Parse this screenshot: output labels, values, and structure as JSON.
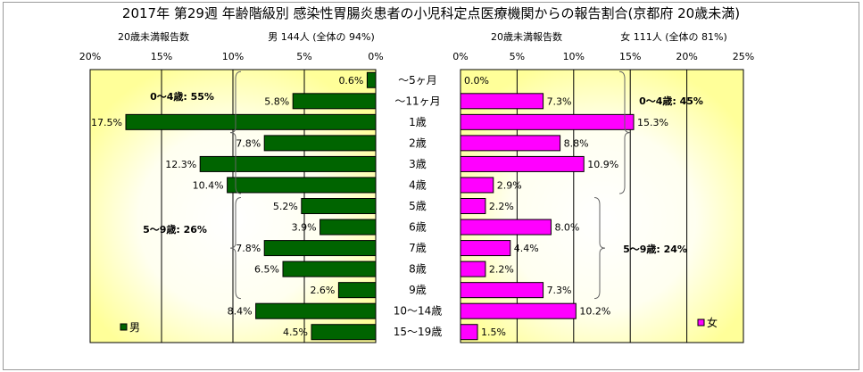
{
  "title": "2017年 第29週 年齢階級別 感染性胃腸炎患者の小児科定点医療機関からの報告割合(京都府 20歳未満)",
  "chart_data": [
    {
      "type": "bar",
      "orientation": "horizontal",
      "x_direction": "reversed",
      "subtitle_left": "20歳未満報告数",
      "subtitle_right": "男 144人 (全体の 94%)",
      "categories": [
        "～5ヶ月",
        "～11ヶ月",
        "1歳",
        "2歳",
        "3歳",
        "4歳",
        "5歳",
        "6歳",
        "7歳",
        "8歳",
        "9歳",
        "10～14歳",
        "15～19歳"
      ],
      "series": [
        {
          "name": "男",
          "color": "#006400",
          "values": [
            0.6,
            5.8,
            17.5,
            7.8,
            12.3,
            10.4,
            5.2,
            3.9,
            7.8,
            6.5,
            2.6,
            8.4,
            4.5
          ],
          "labels": [
            "0.6%",
            "5.8%",
            "17.5%",
            "7.8%",
            "12.3%",
            "10.4%",
            "5.2%",
            "3.9%",
            "7.8%",
            "6.5%",
            "2.6%",
            "8.4%",
            "4.5%"
          ]
        }
      ],
      "xlim": [
        0,
        20
      ],
      "xticks": [
        "20%",
        "15%",
        "10%",
        "5%",
        "0%"
      ],
      "group_annotations": [
        "0～4歳: 55%",
        "5～9歳: 26%"
      ],
      "legend": "bottom-left",
      "grid": true
    },
    {
      "type": "bar",
      "orientation": "horizontal",
      "subtitle_left": "20歳未満報告数",
      "subtitle_right": "女 111人 (全体の 81%)",
      "categories": [
        "～5ヶ月",
        "～11ヶ月",
        "1歳",
        "2歳",
        "3歳",
        "4歳",
        "5歳",
        "6歳",
        "7歳",
        "8歳",
        "9歳",
        "10～14歳",
        "15～19歳"
      ],
      "series": [
        {
          "name": "女",
          "color": "#ff00ff",
          "values": [
            0.0,
            7.3,
            15.3,
            8.8,
            10.9,
            2.9,
            2.2,
            8.0,
            4.4,
            2.2,
            7.3,
            10.2,
            1.5
          ],
          "labels": [
            "0.0%",
            "7.3%",
            "15.3%",
            "8.8%",
            "10.9%",
            "2.9%",
            "2.2%",
            "8.0%",
            "4.4%",
            "2.2%",
            "7.3%",
            "10.2%",
            "1.5%"
          ]
        }
      ],
      "xlim": [
        0,
        25
      ],
      "xticks": [
        "0%",
        "5%",
        "10%",
        "15%",
        "20%",
        "25%"
      ],
      "group_annotations": [
        "0～4歳: 45%",
        "5～9歳: 24%"
      ],
      "legend": "bottom-right",
      "grid": true
    }
  ]
}
